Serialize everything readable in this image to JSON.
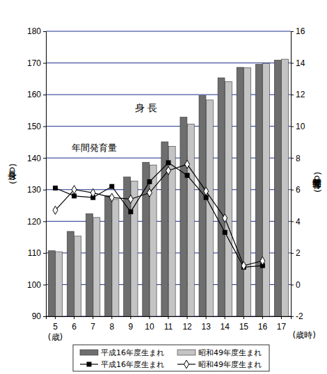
{
  "chart_data": {
    "type": "bar",
    "categories": [
      "5",
      "6",
      "7",
      "8",
      "9",
      "10",
      "11",
      "12",
      "13",
      "14",
      "15",
      "16",
      "17"
    ],
    "y_label": "身長(cm)",
    "y2_label": "年間発育量(cm)",
    "annotations": [
      "身 長",
      "年間発育量",
      "(歳)",
      "(歳時)"
    ],
    "ylim": [
      90,
      180
    ],
    "yticks": [
      90,
      100,
      110,
      120,
      130,
      140,
      150,
      160,
      170,
      180
    ],
    "y2lim": [
      -2,
      16
    ],
    "y2ticks": [
      -2,
      0,
      2,
      4,
      6,
      8,
      10,
      12,
      14,
      16
    ],
    "grid": true,
    "legend": "bottom",
    "series": [
      {
        "name": "平成16年度生まれ",
        "type": "bar",
        "color": "#6e6e6e",
        "values": [
          110.7,
          116.8,
          122.4,
          128.1,
          134.0,
          138.6,
          145.1,
          152.9,
          159.7,
          165.3,
          168.6,
          169.6,
          170.9
        ]
      },
      {
        "name": "昭和49年度生まれ",
        "type": "bar",
        "color": "#c4c4c4",
        "values": [
          110.4,
          115.3,
          121.2,
          126.9,
          132.7,
          137.8,
          143.7,
          150.7,
          158.3,
          164.1,
          168.5,
          169.9,
          171.2
        ]
      },
      {
        "name": "平成16年度生まれ",
        "type": "line",
        "axis": "y2",
        "color": "#000000",
        "marker": "square",
        "values": [
          6.1,
          5.6,
          5.5,
          6.2,
          4.6,
          6.5,
          7.7,
          6.9,
          5.5,
          3.3,
          1.1,
          1.2,
          null
        ]
      },
      {
        "name": "昭和49年度生まれ",
        "type": "line",
        "axis": "y2",
        "color": "#000000",
        "marker": "diamond",
        "values": [
          4.7,
          6.0,
          5.8,
          5.5,
          5.4,
          5.8,
          7.2,
          7.6,
          5.9,
          4.2,
          1.2,
          1.5,
          null
        ]
      }
    ]
  }
}
